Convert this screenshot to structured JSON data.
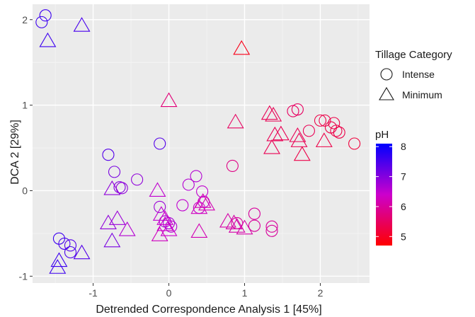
{
  "chart_data": {
    "type": "scatter",
    "xlabel": "Detrended Correspondence Analysis 1 [45%]",
    "ylabel": "DCA 2 [29%]",
    "xlim": [
      -1.8,
      2.65
    ],
    "ylim": [
      -1.08,
      2.18
    ],
    "x_ticks": [
      -1,
      0,
      1,
      2
    ],
    "y_ticks": [
      -1,
      0,
      1,
      2
    ],
    "x_tick_labels": [
      "-1",
      "0",
      "1",
      "2"
    ],
    "y_tick_labels": [
      "-1",
      "0",
      "1",
      "2"
    ],
    "grid": true,
    "background": "#ebebeb",
    "legend_shape": {
      "title": "Tillage Category",
      "items": [
        {
          "label": "Intense",
          "shape": "circle"
        },
        {
          "label": "Minimum",
          "shape": "triangle"
        }
      ]
    },
    "legend_color": {
      "title": "pH",
      "ticks": [
        8,
        7,
        6,
        5
      ],
      "tick_labels": [
        "8",
        "7",
        "6",
        "5"
      ],
      "range": [
        4.7,
        8.1
      ],
      "low_color": "#ff0000",
      "mid_color": "#cc00cc",
      "high_color": "#0000ff"
    },
    "series": [
      {
        "shape": "circle",
        "points": [
          {
            "x": -1.63,
            "y": 2.05,
            "ph": 7.6
          },
          {
            "x": -1.68,
            "y": 1.97,
            "ph": 7.6
          },
          {
            "x": -1.45,
            "y": -0.56,
            "ph": 7.6
          },
          {
            "x": -1.38,
            "y": -0.62,
            "ph": 7.5
          },
          {
            "x": -1.3,
            "y": -0.64,
            "ph": 7.4
          },
          {
            "x": -1.3,
            "y": -0.72,
            "ph": 7.5
          },
          {
            "x": -0.8,
            "y": 0.42,
            "ph": 7.4
          },
          {
            "x": -0.12,
            "y": 0.55,
            "ph": 7.4
          },
          {
            "x": -0.72,
            "y": 0.22,
            "ph": 7.1
          },
          {
            "x": -0.65,
            "y": 0.04,
            "ph": 7.0
          },
          {
            "x": -0.62,
            "y": 0.03,
            "ph": 6.9
          },
          {
            "x": -0.42,
            "y": 0.13,
            "ph": 6.9
          },
          {
            "x": -0.12,
            "y": -0.19,
            "ph": 6.8
          },
          {
            "x": -0.05,
            "y": -0.36,
            "ph": 6.7
          },
          {
            "x": 0.0,
            "y": -0.38,
            "ph": 6.7
          },
          {
            "x": 0.03,
            "y": -0.42,
            "ph": 6.6
          },
          {
            "x": 0.18,
            "y": -0.17,
            "ph": 6.5
          },
          {
            "x": 0.26,
            "y": 0.07,
            "ph": 6.6
          },
          {
            "x": 0.36,
            "y": 0.17,
            "ph": 6.6
          },
          {
            "x": 0.4,
            "y": -0.2,
            "ph": 6.4
          },
          {
            "x": 0.44,
            "y": -0.01,
            "ph": 6.5
          },
          {
            "x": 0.46,
            "y": -0.13,
            "ph": 6.4
          },
          {
            "x": 0.84,
            "y": 0.29,
            "ph": 5.8
          },
          {
            "x": 0.9,
            "y": -0.38,
            "ph": 6.0
          },
          {
            "x": 1.13,
            "y": -0.27,
            "ph": 6.0
          },
          {
            "x": 1.13,
            "y": -0.41,
            "ph": 6.0
          },
          {
            "x": 1.36,
            "y": -0.42,
            "ph": 6.0
          },
          {
            "x": 1.36,
            "y": -0.47,
            "ph": 6.0
          },
          {
            "x": 1.64,
            "y": 0.93,
            "ph": 5.5
          },
          {
            "x": 1.7,
            "y": 0.95,
            "ph": 5.5
          },
          {
            "x": 1.85,
            "y": 0.7,
            "ph": 5.4
          },
          {
            "x": 2.0,
            "y": 0.82,
            "ph": 5.3
          },
          {
            "x": 2.06,
            "y": 0.82,
            "ph": 5.3
          },
          {
            "x": 2.14,
            "y": 0.74,
            "ph": 5.3
          },
          {
            "x": 2.18,
            "y": 0.79,
            "ph": 5.3
          },
          {
            "x": 2.21,
            "y": 0.7,
            "ph": 5.3
          },
          {
            "x": 2.25,
            "y": 0.68,
            "ph": 5.3
          },
          {
            "x": 2.45,
            "y": 0.55,
            "ph": 5.2
          }
        ]
      },
      {
        "shape": "triangle",
        "points": [
          {
            "x": -1.6,
            "y": 1.75,
            "ph": 7.6
          },
          {
            "x": -1.15,
            "y": 1.93,
            "ph": 7.5
          },
          {
            "x": 0.96,
            "y": 1.66,
            "ph": 4.9
          },
          {
            "x": 0.0,
            "y": 1.05,
            "ph": 5.7
          },
          {
            "x": -1.45,
            "y": -0.82,
            "ph": 7.6
          },
          {
            "x": -1.47,
            "y": -0.9,
            "ph": 7.6
          },
          {
            "x": -1.15,
            "y": -0.73,
            "ph": 7.4
          },
          {
            "x": -0.75,
            "y": 0.02,
            "ph": 6.9
          },
          {
            "x": -0.8,
            "y": -0.38,
            "ph": 6.9
          },
          {
            "x": -0.68,
            "y": -0.33,
            "ph": 6.8
          },
          {
            "x": -0.75,
            "y": -0.59,
            "ph": 7.1
          },
          {
            "x": -0.55,
            "y": -0.46,
            "ph": 6.6
          },
          {
            "x": -0.15,
            "y": 0.0,
            "ph": 6.5
          },
          {
            "x": -0.1,
            "y": -0.28,
            "ph": 6.5
          },
          {
            "x": -0.05,
            "y": -0.33,
            "ph": 6.4
          },
          {
            "x": -0.05,
            "y": -0.4,
            "ph": 6.4
          },
          {
            "x": 0.0,
            "y": -0.46,
            "ph": 6.4
          },
          {
            "x": -0.12,
            "y": -0.52,
            "ph": 6.3
          },
          {
            "x": 0.4,
            "y": -0.2,
            "ph": 6.3
          },
          {
            "x": 0.45,
            "y": -0.13,
            "ph": 6.2
          },
          {
            "x": 0.5,
            "y": -0.16,
            "ph": 6.2
          },
          {
            "x": 0.4,
            "y": -0.48,
            "ph": 6.2
          },
          {
            "x": 0.78,
            "y": -0.36,
            "ph": 6.1
          },
          {
            "x": 0.86,
            "y": -0.38,
            "ph": 6.1
          },
          {
            "x": 0.9,
            "y": -0.42,
            "ph": 6.1
          },
          {
            "x": 1.0,
            "y": -0.44,
            "ph": 6.1
          },
          {
            "x": 0.88,
            "y": 0.8,
            "ph": 5.5
          },
          {
            "x": 1.33,
            "y": 0.9,
            "ph": 5.4
          },
          {
            "x": 1.38,
            "y": 0.88,
            "ph": 5.4
          },
          {
            "x": 1.4,
            "y": 0.65,
            "ph": 5.4
          },
          {
            "x": 1.36,
            "y": 0.5,
            "ph": 5.4
          },
          {
            "x": 1.48,
            "y": 0.66,
            "ph": 5.4
          },
          {
            "x": 1.7,
            "y": 0.64,
            "ph": 5.4
          },
          {
            "x": 1.72,
            "y": 0.58,
            "ph": 5.4
          },
          {
            "x": 1.76,
            "y": 0.42,
            "ph": 5.3
          },
          {
            "x": 2.05,
            "y": 0.58,
            "ph": 5.3
          }
        ]
      }
    ]
  }
}
